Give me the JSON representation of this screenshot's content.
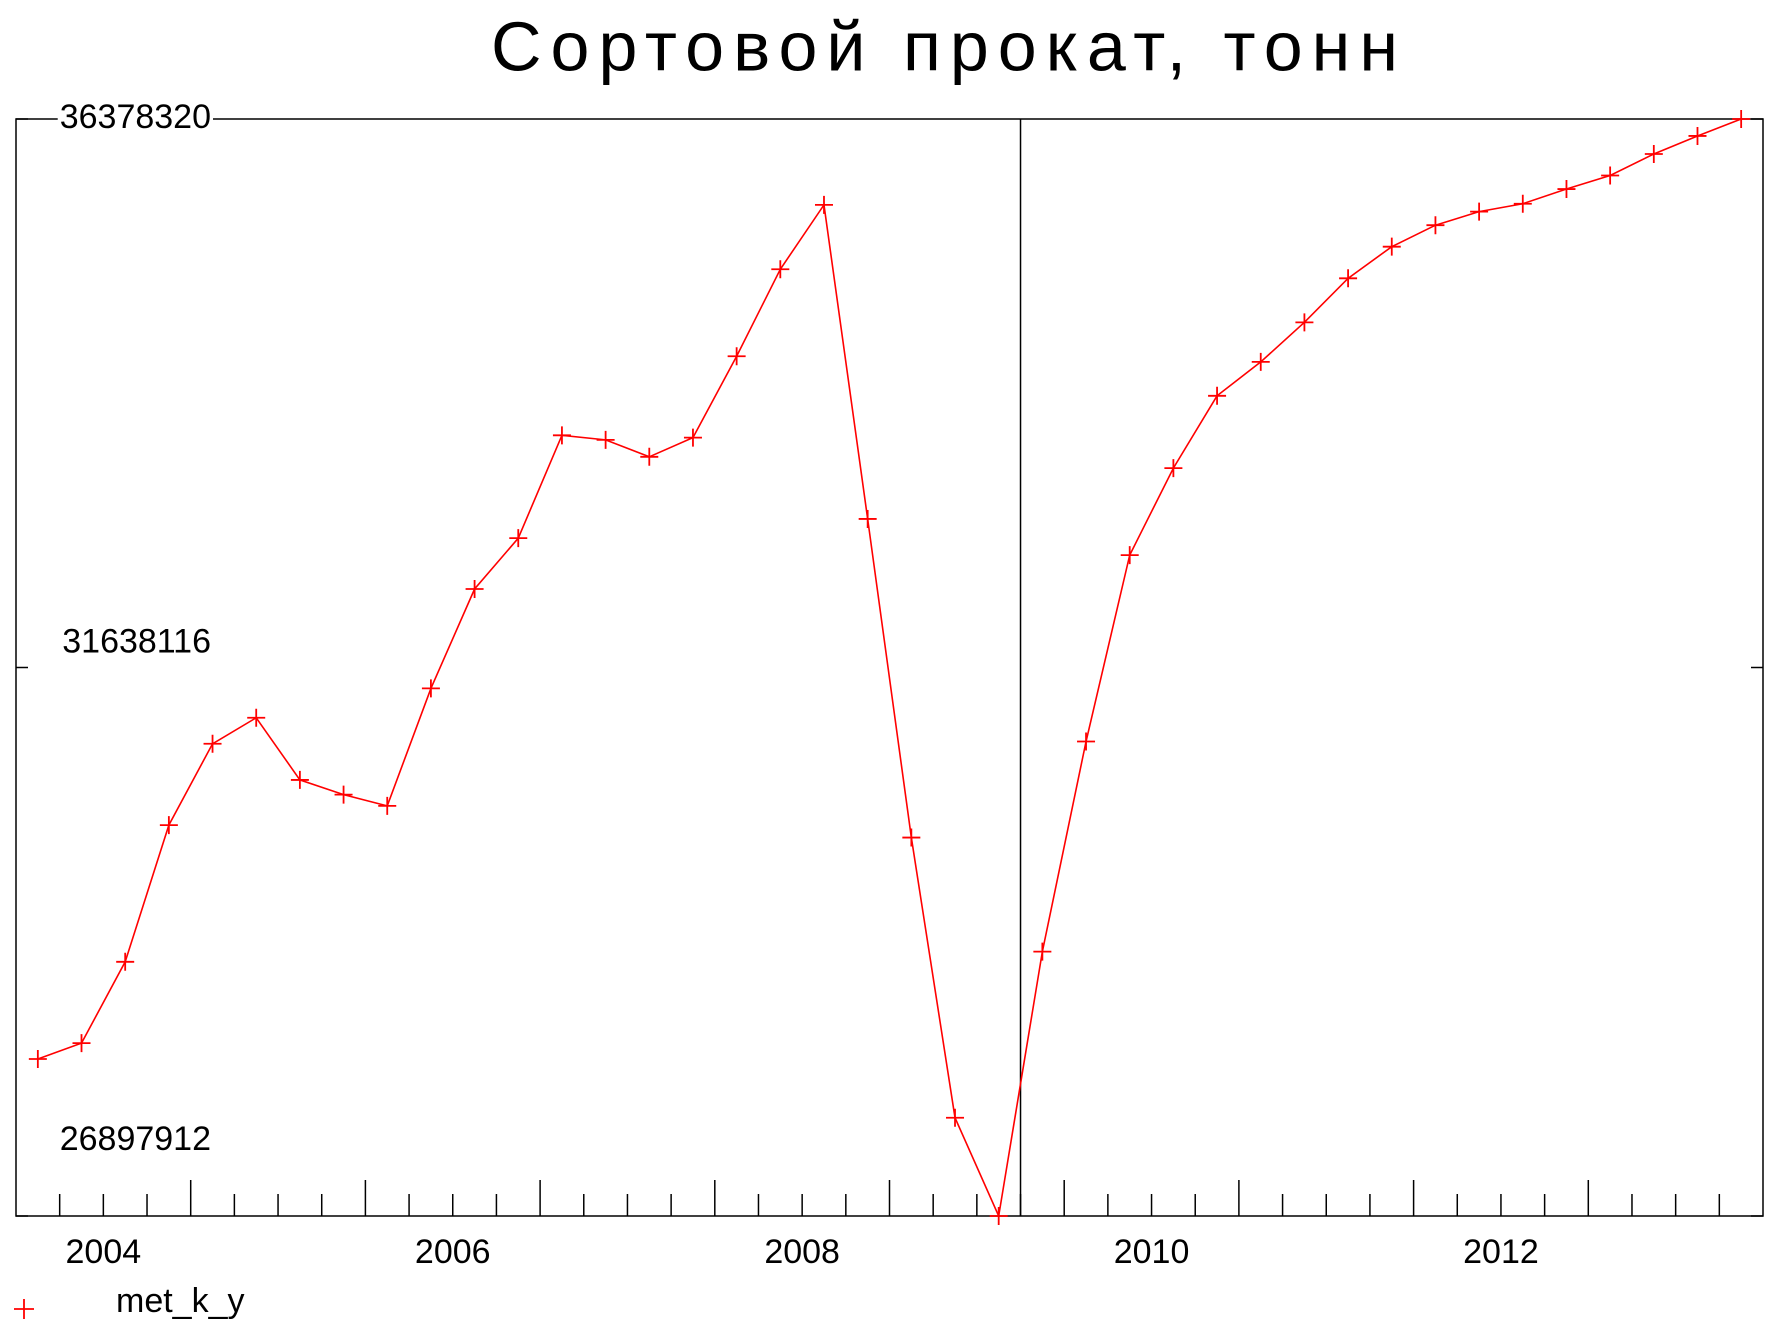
{
  "chart_data": {
    "type": "line",
    "title": "Сортовой прокат, тонн",
    "x": [
      2004.125,
      2004.375,
      2004.625,
      2004.875,
      2005.125,
      2005.375,
      2005.625,
      2005.875,
      2006.125,
      2006.375,
      2006.625,
      2006.875,
      2007.125,
      2007.375,
      2007.625,
      2007.875,
      2008.125,
      2008.375,
      2008.625,
      2008.875,
      2009.125,
      2009.375,
      2009.625,
      2009.875,
      2010.125,
      2010.375,
      2010.625,
      2010.875,
      2011.125,
      2011.375,
      2011.625,
      2011.875,
      2012.125,
      2012.375,
      2012.625,
      2012.875,
      2013.125,
      2013.375,
      2013.625,
      2013.875
    ],
    "series": [
      {
        "name": "met_k_y",
        "color": "#ff0000",
        "values": [
          28255000,
          28391700,
          29094700,
          30276100,
          30979000,
          31203600,
          30666600,
          30539700,
          30442000,
          31457400,
          32316600,
          32756000,
          33644500,
          33605400,
          33459000,
          33625000,
          34327900,
          35079700,
          35636300,
          32922000,
          30168600,
          27747300,
          26897912,
          29182500,
          30998500,
          32609500,
          33361300,
          33986200,
          34279100,
          34620900,
          35001600,
          35275000,
          35460500,
          35577700,
          35646000,
          35773000,
          35890100,
          36075600,
          36231800,
          36378320
        ]
      }
    ],
    "xlim": [
      2004,
      2014
    ],
    "xticks": [
      {
        "value": 2004.5,
        "label": "2004"
      },
      {
        "value": 2006.5,
        "label": "2006"
      },
      {
        "value": 2008.5,
        "label": "2008"
      },
      {
        "value": 2010.5,
        "label": "2010"
      },
      {
        "value": 2012.5,
        "label": "2012"
      }
    ],
    "x_major_ticks": [
      2005,
      2006,
      2007,
      2008,
      2009,
      2010,
      2011,
      2012,
      2013
    ],
    "x_minor_ticks": [
      2004.25,
      2004.5,
      2004.75,
      2005.25,
      2005.5,
      2005.75,
      2006.25,
      2006.5,
      2006.75,
      2007.25,
      2007.5,
      2007.75,
      2008.25,
      2008.5,
      2008.75,
      2009.25,
      2009.5,
      2009.75,
      2010.25,
      2010.5,
      2010.75,
      2011.25,
      2011.5,
      2011.75,
      2012.25,
      2012.5,
      2012.75,
      2013.25,
      2013.5,
      2013.75
    ],
    "vline": 2009.75,
    "ylim": [
      26897912,
      36378320
    ],
    "yticks": [
      26897912,
      31638116,
      36378320
    ],
    "grid": false
  }
}
